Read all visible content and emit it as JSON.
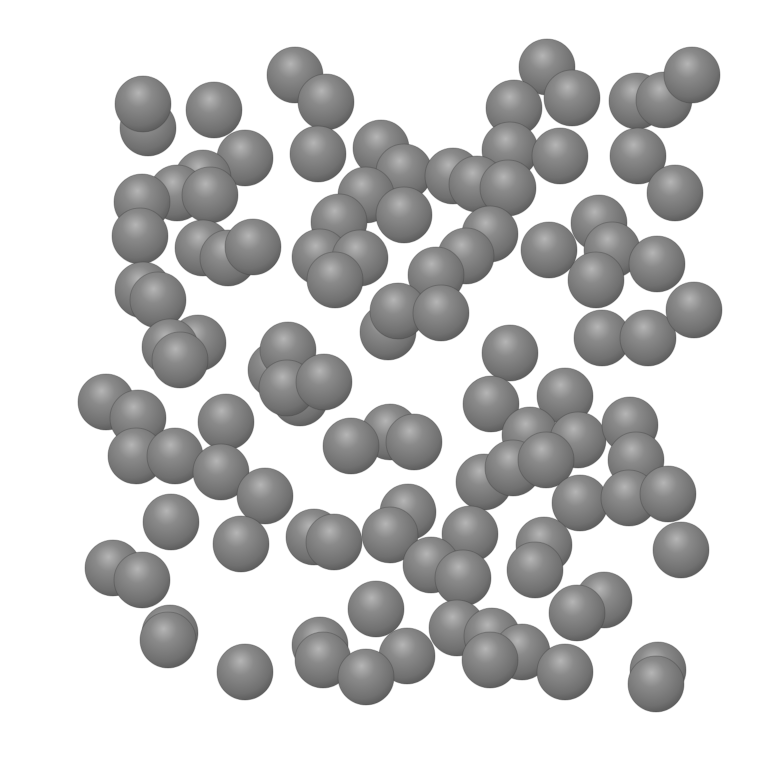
{
  "scene": {
    "background": "#ffffff",
    "sphere_color": "#6f6f6f",
    "sphere_highlight": "#c9c9c9",
    "sphere_shadow": "#3f3f3f"
  }
}
